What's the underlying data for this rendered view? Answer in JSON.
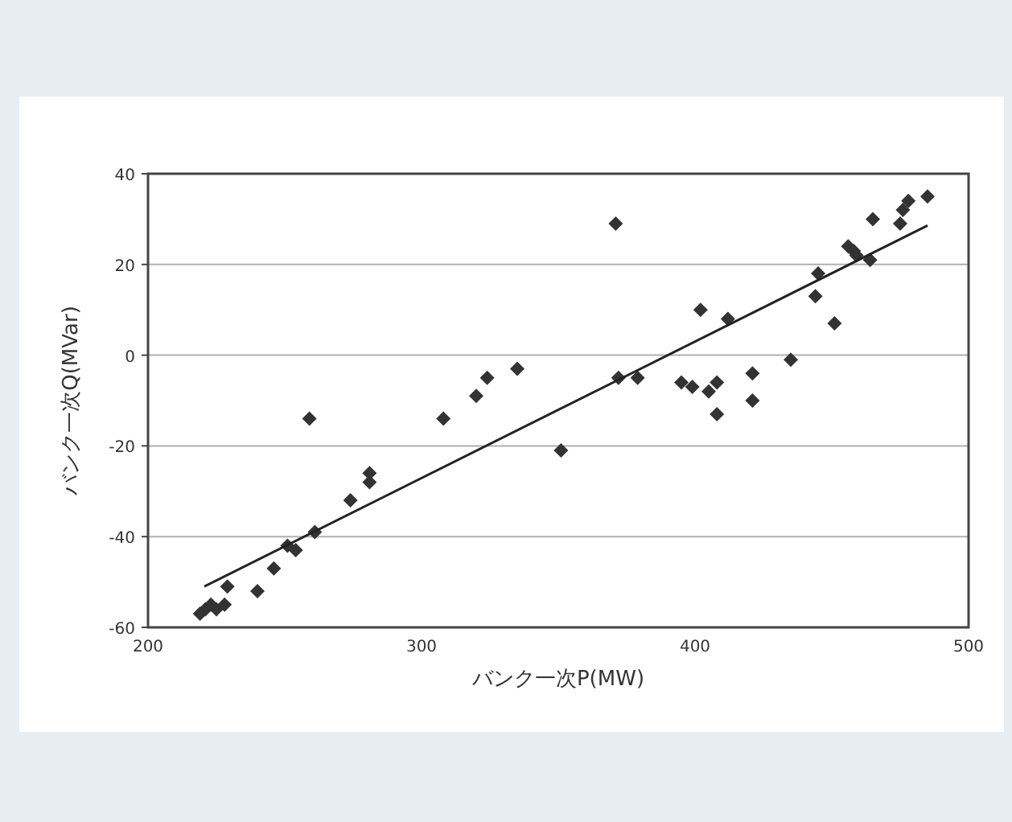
{
  "chart_data": {
    "type": "scatter",
    "xlabel": "バンク一次P(MW)",
    "ylabel": "バンク一次Q(MVar)",
    "xlim": [
      200,
      500
    ],
    "ylim": [
      -60,
      40
    ],
    "xticks": [
      200,
      300,
      400,
      500
    ],
    "yticks": [
      -60,
      -40,
      -20,
      0,
      20,
      40
    ],
    "grid": "y",
    "series": [
      {
        "color": "#333333",
        "marker": "diamond",
        "x": [
          219,
          221,
          223,
          225,
          228,
          229,
          240,
          246,
          251,
          254,
          261,
          259,
          274,
          281,
          281,
          308,
          320,
          324,
          335,
          351,
          371,
          372,
          379,
          395,
          399,
          402,
          405,
          408,
          408,
          412,
          421,
          421,
          435,
          444,
          445,
          451,
          456,
          458,
          459,
          464,
          465,
          475,
          476,
          478,
          485
        ],
        "values": [
          -57,
          -56,
          -55,
          -56,
          -55,
          -51,
          -52,
          -47,
          -42,
          -43,
          -39,
          -14,
          -32,
          -28,
          -26,
          -14,
          -9,
          -5,
          -3,
          -21,
          29,
          -5,
          -5,
          -6,
          -7,
          10,
          -8,
          -6,
          -13,
          8,
          -4,
          -10,
          -1,
          13,
          18,
          7,
          24,
          23,
          22,
          21,
          30,
          29,
          32,
          34,
          35
        ]
      },
      {
        "type": "line",
        "color": "#222222",
        "x": [
          220.6,
          485
        ],
        "values": [
          -51,
          28.6
        ]
      }
    ]
  }
}
